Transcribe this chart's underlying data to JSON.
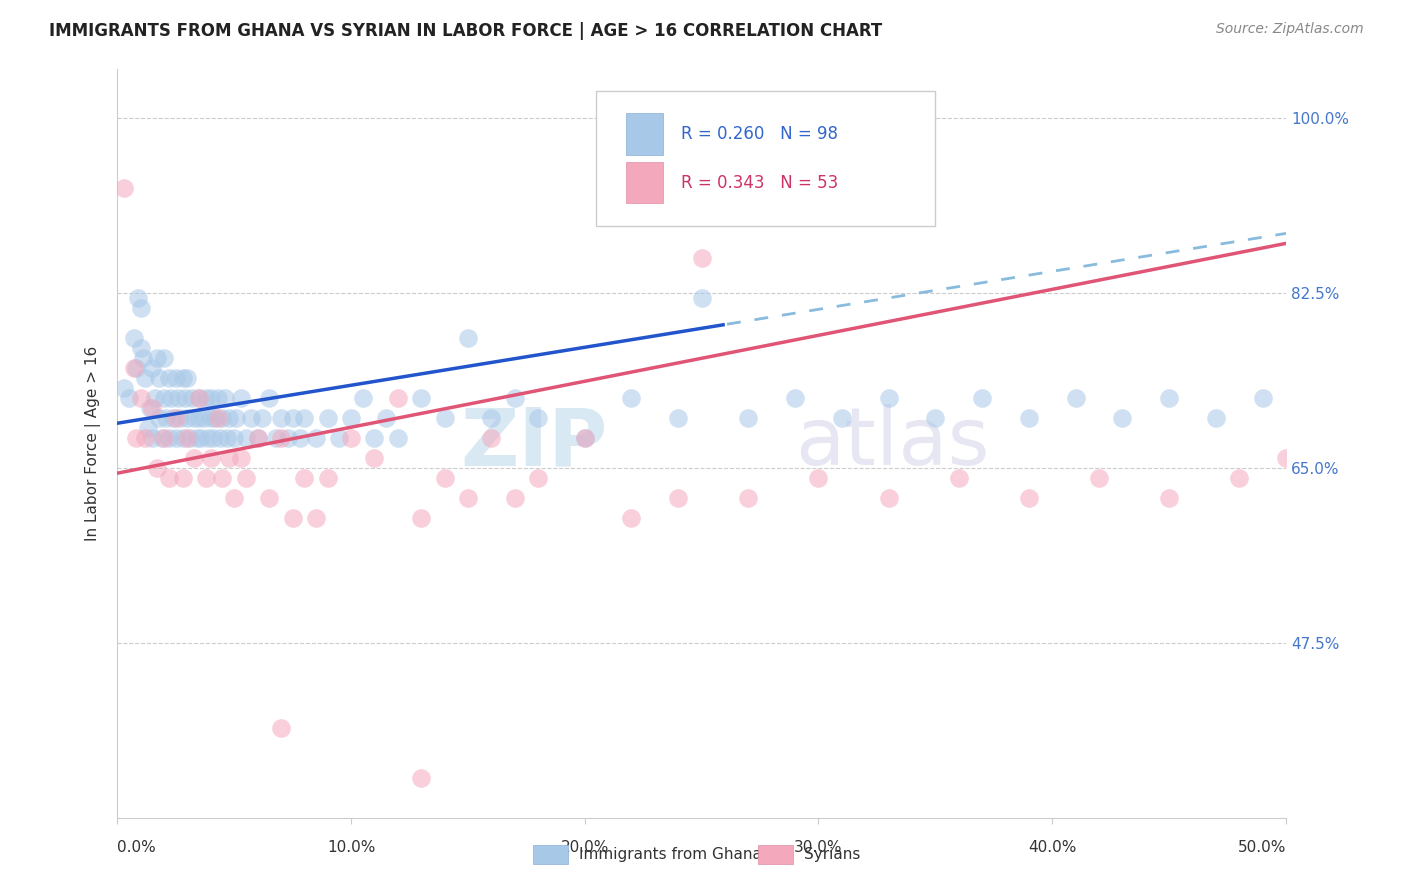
{
  "title": "IMMIGRANTS FROM GHANA VS SYRIAN IN LABOR FORCE | AGE > 16 CORRELATION CHART",
  "source": "Source: ZipAtlas.com",
  "ylabel": "In Labor Force | Age > 16",
  "x_tick_labels": [
    "0.0%",
    "10.0%",
    "20.0%",
    "30.0%",
    "40.0%",
    "50.0%"
  ],
  "x_tick_values": [
    0.0,
    0.1,
    0.2,
    0.3,
    0.4,
    0.5
  ],
  "y_tick_labels": [
    "47.5%",
    "65.0%",
    "82.5%",
    "100.0%"
  ],
  "y_tick_values": [
    0.475,
    0.65,
    0.825,
    1.0
  ],
  "xlim": [
    0.0,
    0.5
  ],
  "ylim": [
    0.3,
    1.05
  ],
  "ghana_R": 0.26,
  "ghana_N": 98,
  "syrian_R": 0.343,
  "syrian_N": 53,
  "ghana_color": "#a8c8e8",
  "syrian_color": "#f4a8bc",
  "ghana_line_color": "#2255cc",
  "syrian_line_color": "#e05575",
  "ghana_dashed_color": "#88bbdd",
  "legend_text_blue": "#3366cc",
  "legend_text_pink": "#cc3366",
  "watermark_zip_color": "#c8e0f0",
  "watermark_atlas_color": "#d8d8ee",
  "bottom_legend_ghana": "Immigrants from Ghana",
  "bottom_legend_syrian": "Syrians",
  "ghana_x": [
    0.003,
    0.005,
    0.007,
    0.008,
    0.009,
    0.01,
    0.01,
    0.011,
    0.012,
    0.013,
    0.014,
    0.015,
    0.015,
    0.016,
    0.017,
    0.018,
    0.018,
    0.019,
    0.02,
    0.02,
    0.021,
    0.022,
    0.022,
    0.023,
    0.024,
    0.025,
    0.025,
    0.026,
    0.027,
    0.028,
    0.028,
    0.029,
    0.03,
    0.03,
    0.031,
    0.032,
    0.033,
    0.034,
    0.035,
    0.035,
    0.036,
    0.037,
    0.038,
    0.039,
    0.04,
    0.04,
    0.041,
    0.042,
    0.043,
    0.044,
    0.045,
    0.046,
    0.047,
    0.048,
    0.05,
    0.051,
    0.053,
    0.055,
    0.057,
    0.06,
    0.062,
    0.065,
    0.068,
    0.07,
    0.073,
    0.075,
    0.078,
    0.08,
    0.085,
    0.09,
    0.095,
    0.1,
    0.105,
    0.11,
    0.115,
    0.12,
    0.13,
    0.14,
    0.15,
    0.16,
    0.17,
    0.18,
    0.2,
    0.22,
    0.24,
    0.25,
    0.27,
    0.29,
    0.31,
    0.33,
    0.35,
    0.37,
    0.39,
    0.41,
    0.43,
    0.45,
    0.47,
    0.49
  ],
  "ghana_y": [
    0.73,
    0.72,
    0.78,
    0.75,
    0.82,
    0.77,
    0.81,
    0.76,
    0.74,
    0.69,
    0.71,
    0.75,
    0.68,
    0.72,
    0.76,
    0.7,
    0.74,
    0.68,
    0.72,
    0.76,
    0.7,
    0.74,
    0.68,
    0.72,
    0.7,
    0.74,
    0.68,
    0.72,
    0.7,
    0.74,
    0.68,
    0.72,
    0.7,
    0.74,
    0.68,
    0.72,
    0.7,
    0.68,
    0.72,
    0.7,
    0.68,
    0.7,
    0.72,
    0.68,
    0.7,
    0.72,
    0.68,
    0.7,
    0.72,
    0.68,
    0.7,
    0.72,
    0.68,
    0.7,
    0.68,
    0.7,
    0.72,
    0.68,
    0.7,
    0.68,
    0.7,
    0.72,
    0.68,
    0.7,
    0.68,
    0.7,
    0.68,
    0.7,
    0.68,
    0.7,
    0.68,
    0.7,
    0.72,
    0.68,
    0.7,
    0.68,
    0.72,
    0.7,
    0.78,
    0.7,
    0.72,
    0.7,
    0.68,
    0.72,
    0.7,
    0.82,
    0.7,
    0.72,
    0.7,
    0.72,
    0.7,
    0.72,
    0.7,
    0.72,
    0.7,
    0.72,
    0.7,
    0.72
  ],
  "syrian_x": [
    0.003,
    0.007,
    0.01,
    0.012,
    0.015,
    0.017,
    0.02,
    0.022,
    0.025,
    0.028,
    0.03,
    0.033,
    0.035,
    0.038,
    0.04,
    0.043,
    0.045,
    0.048,
    0.05,
    0.053,
    0.055,
    0.06,
    0.065,
    0.07,
    0.075,
    0.08,
    0.085,
    0.09,
    0.1,
    0.11,
    0.12,
    0.13,
    0.14,
    0.15,
    0.16,
    0.17,
    0.18,
    0.2,
    0.22,
    0.24,
    0.25,
    0.27,
    0.3,
    0.33,
    0.36,
    0.39,
    0.42,
    0.45,
    0.48,
    0.5,
    0.008,
    0.13,
    0.07
  ],
  "syrian_y": [
    0.93,
    0.75,
    0.72,
    0.68,
    0.71,
    0.65,
    0.68,
    0.64,
    0.7,
    0.64,
    0.68,
    0.66,
    0.72,
    0.64,
    0.66,
    0.7,
    0.64,
    0.66,
    0.62,
    0.66,
    0.64,
    0.68,
    0.62,
    0.68,
    0.6,
    0.64,
    0.6,
    0.64,
    0.68,
    0.66,
    0.72,
    0.6,
    0.64,
    0.62,
    0.68,
    0.62,
    0.64,
    0.68,
    0.6,
    0.62,
    0.86,
    0.62,
    0.64,
    0.62,
    0.64,
    0.62,
    0.64,
    0.62,
    0.64,
    0.66,
    0.68,
    0.34,
    0.39
  ],
  "ghana_line_x0": 0.0,
  "ghana_line_x_solid_end": 0.26,
  "ghana_line_y0": 0.695,
  "ghana_line_slope": 0.38,
  "syrian_line_x0": 0.0,
  "syrian_line_y0": 0.645,
  "syrian_line_slope": 0.46
}
